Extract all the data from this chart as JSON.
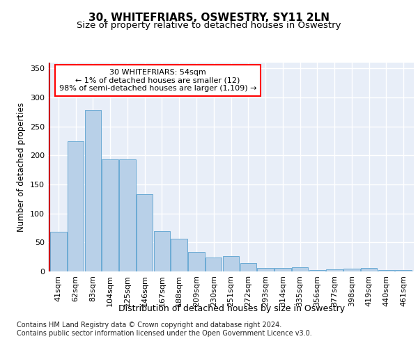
{
  "title": "30, WHITEFRIARS, OSWESTRY, SY11 2LN",
  "subtitle": "Size of property relative to detached houses in Oswestry",
  "xlabel": "Distribution of detached houses by size in Oswestry",
  "ylabel": "Number of detached properties",
  "categories": [
    "41sqm",
    "62sqm",
    "83sqm",
    "104sqm",
    "125sqm",
    "146sqm",
    "167sqm",
    "188sqm",
    "209sqm",
    "230sqm",
    "251sqm",
    "272sqm",
    "293sqm",
    "314sqm",
    "335sqm",
    "356sqm",
    "377sqm",
    "398sqm",
    "419sqm",
    "440sqm",
    "461sqm"
  ],
  "values": [
    68,
    224,
    278,
    193,
    193,
    133,
    70,
    57,
    34,
    24,
    26,
    15,
    6,
    6,
    7,
    3,
    4,
    5,
    6,
    3,
    3
  ],
  "bar_color": "#b8d0e8",
  "bar_edge_color": "#6aaad4",
  "red_line_x": -0.5,
  "highlight_color": "#cc0000",
  "annotation_box_text": "30 WHITEFRIARS: 54sqm\n← 1% of detached houses are smaller (12)\n98% of semi-detached houses are larger (1,109) →",
  "footer": "Contains HM Land Registry data © Crown copyright and database right 2024.\nContains public sector information licensed under the Open Government Licence v3.0.",
  "ylim": [
    0,
    360
  ],
  "yticks": [
    0,
    50,
    100,
    150,
    200,
    250,
    300,
    350
  ],
  "background_color": "#e8eef8",
  "grid_color": "#ffffff",
  "title_fontsize": 11,
  "subtitle_fontsize": 9.5,
  "xlabel_fontsize": 9,
  "ylabel_fontsize": 8.5,
  "tick_fontsize": 8,
  "annotation_fontsize": 8,
  "footer_fontsize": 7
}
